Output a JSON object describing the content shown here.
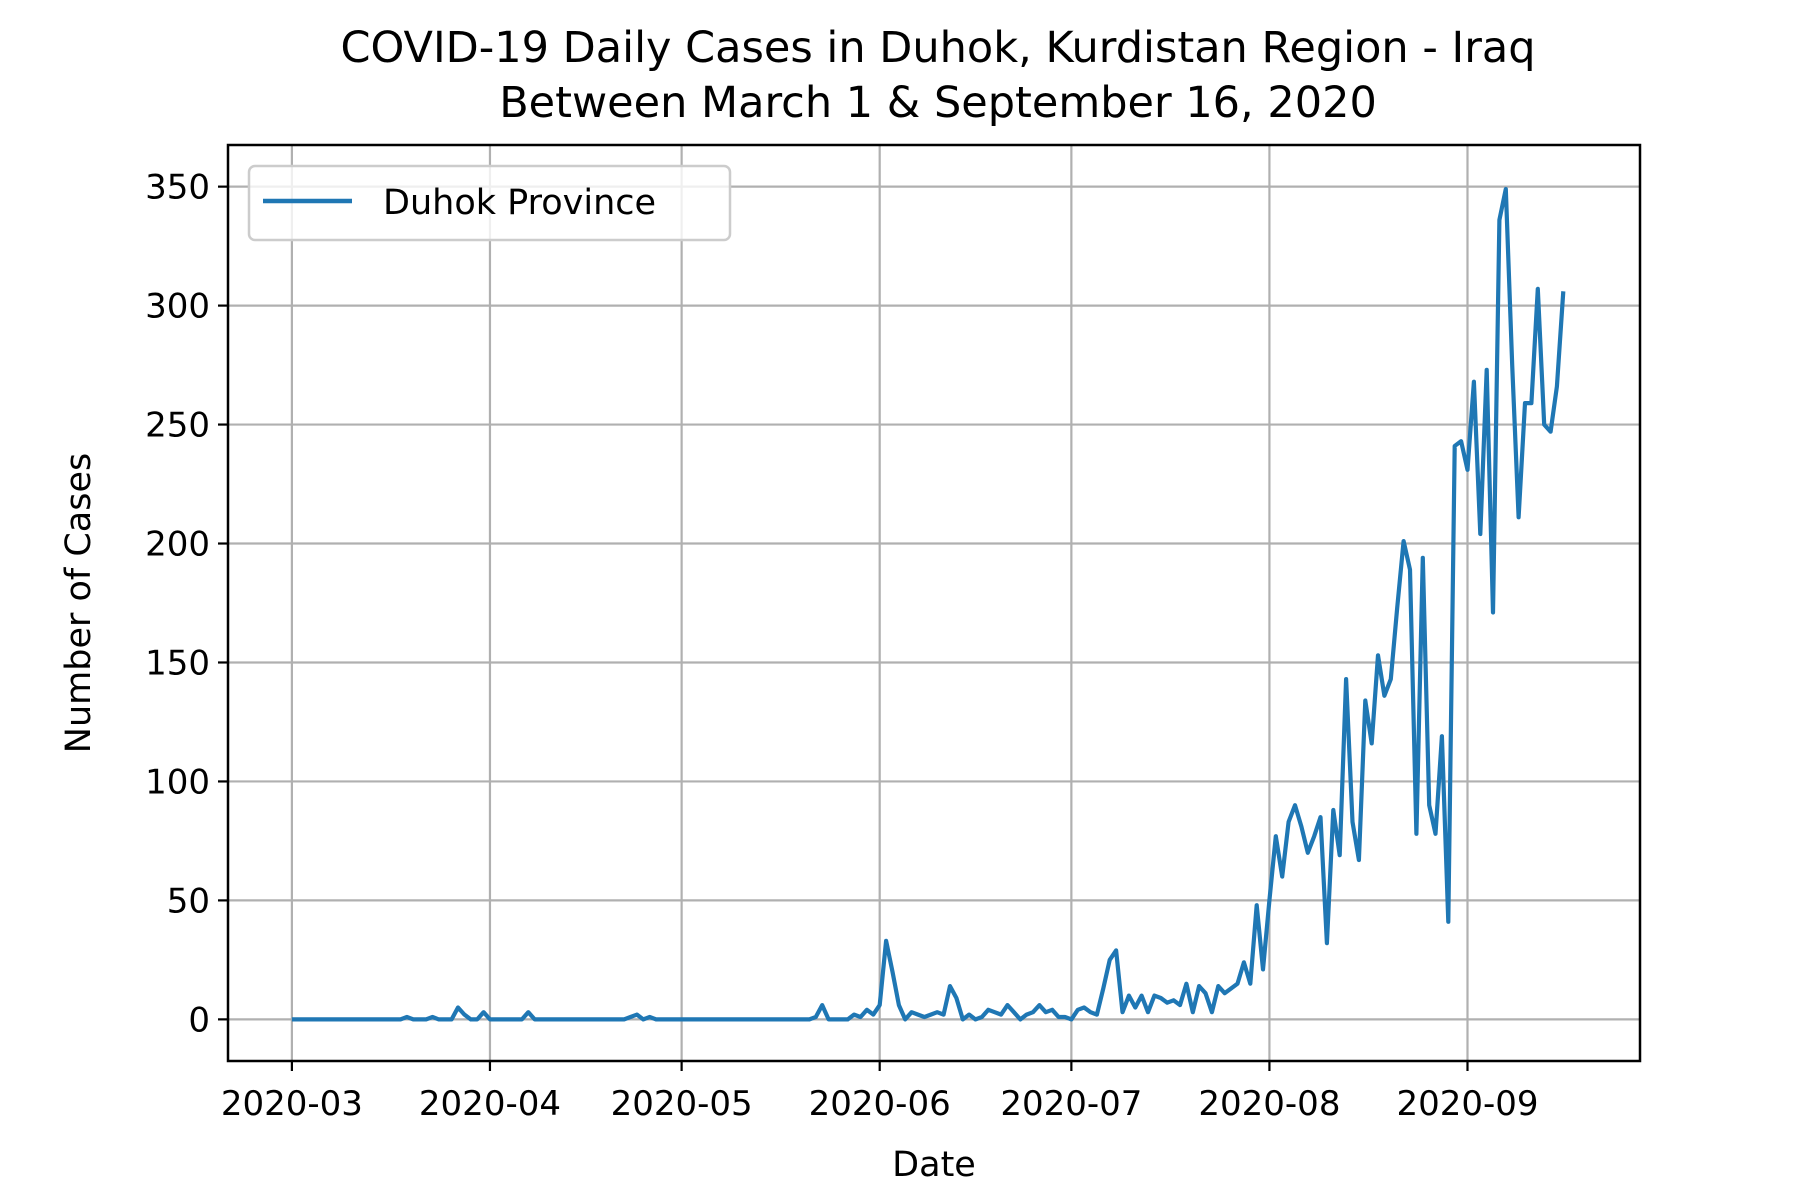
{
  "chart_data": {
    "type": "line",
    "title": "COVID-19 Daily Cases in Duhok, Kurdistan Region - Iraq",
    "subtitle": "Between March 1 & September 16, 2020",
    "xlabel": "Date",
    "ylabel": "Number of Cases",
    "x_ticks": [
      "2020-03",
      "2020-04",
      "2020-05",
      "2020-06",
      "2020-07",
      "2020-08",
      "2020-09"
    ],
    "y_ticks": [
      "0",
      "50",
      "100",
      "150",
      "200",
      "250",
      "300",
      "350"
    ],
    "xlim": [
      "2020-02-20",
      "2020-09-28"
    ],
    "ylim": [
      -17.5,
      367.5
    ],
    "grid": true,
    "legend_position": "top-left",
    "series": [
      {
        "name": "Duhok Province",
        "color": "#1f77b4",
        "points": [
          [
            "2020-03-01",
            0
          ],
          [
            "2020-03-05",
            0
          ],
          [
            "2020-03-10",
            0
          ],
          [
            "2020-03-15",
            0
          ],
          [
            "2020-03-18",
            0
          ],
          [
            "2020-03-19",
            1
          ],
          [
            "2020-03-20",
            0
          ],
          [
            "2020-03-22",
            0
          ],
          [
            "2020-03-23",
            1
          ],
          [
            "2020-03-24",
            0
          ],
          [
            "2020-03-26",
            0
          ],
          [
            "2020-03-27",
            5
          ],
          [
            "2020-03-28",
            2
          ],
          [
            "2020-03-29",
            0
          ],
          [
            "2020-03-30",
            0
          ],
          [
            "2020-03-31",
            3
          ],
          [
            "2020-04-01",
            0
          ],
          [
            "2020-04-03",
            0
          ],
          [
            "2020-04-05",
            0
          ],
          [
            "2020-04-06",
            0
          ],
          [
            "2020-04-07",
            3
          ],
          [
            "2020-04-08",
            0
          ],
          [
            "2020-04-10",
            0
          ],
          [
            "2020-04-15",
            0
          ],
          [
            "2020-04-20",
            0
          ],
          [
            "2020-04-22",
            0
          ],
          [
            "2020-04-23",
            1
          ],
          [
            "2020-04-24",
            2
          ],
          [
            "2020-04-25",
            0
          ],
          [
            "2020-04-26",
            1
          ],
          [
            "2020-04-27",
            0
          ],
          [
            "2020-05-01",
            0
          ],
          [
            "2020-05-10",
            0
          ],
          [
            "2020-05-20",
            0
          ],
          [
            "2020-05-21",
            0
          ],
          [
            "2020-05-22",
            1
          ],
          [
            "2020-05-23",
            6
          ],
          [
            "2020-05-24",
            0
          ],
          [
            "2020-05-25",
            0
          ],
          [
            "2020-05-27",
            0
          ],
          [
            "2020-05-28",
            2
          ],
          [
            "2020-05-29",
            1
          ],
          [
            "2020-05-30",
            4
          ],
          [
            "2020-05-31",
            2
          ],
          [
            "2020-06-01",
            6
          ],
          [
            "2020-06-02",
            33
          ],
          [
            "2020-06-03",
            20
          ],
          [
            "2020-06-04",
            6
          ],
          [
            "2020-06-05",
            0
          ],
          [
            "2020-06-06",
            3
          ],
          [
            "2020-06-07",
            2
          ],
          [
            "2020-06-08",
            1
          ],
          [
            "2020-06-09",
            2
          ],
          [
            "2020-06-10",
            3
          ],
          [
            "2020-06-11",
            2
          ],
          [
            "2020-06-12",
            14
          ],
          [
            "2020-06-13",
            9
          ],
          [
            "2020-06-14",
            0
          ],
          [
            "2020-06-15",
            2
          ],
          [
            "2020-06-16",
            0
          ],
          [
            "2020-06-17",
            1
          ],
          [
            "2020-06-18",
            4
          ],
          [
            "2020-06-19",
            3
          ],
          [
            "2020-06-20",
            2
          ],
          [
            "2020-06-21",
            6
          ],
          [
            "2020-06-22",
            3
          ],
          [
            "2020-06-23",
            0
          ],
          [
            "2020-06-24",
            2
          ],
          [
            "2020-06-25",
            3
          ],
          [
            "2020-06-26",
            6
          ],
          [
            "2020-06-27",
            3
          ],
          [
            "2020-06-28",
            4
          ],
          [
            "2020-06-29",
            1
          ],
          [
            "2020-06-30",
            1
          ],
          [
            "2020-07-01",
            0
          ],
          [
            "2020-07-02",
            4
          ],
          [
            "2020-07-03",
            5
          ],
          [
            "2020-07-04",
            3
          ],
          [
            "2020-07-05",
            2
          ],
          [
            "2020-07-06",
            13
          ],
          [
            "2020-07-07",
            25
          ],
          [
            "2020-07-08",
            29
          ],
          [
            "2020-07-09",
            3
          ],
          [
            "2020-07-10",
            10
          ],
          [
            "2020-07-11",
            5
          ],
          [
            "2020-07-12",
            10
          ],
          [
            "2020-07-13",
            3
          ],
          [
            "2020-07-14",
            10
          ],
          [
            "2020-07-15",
            9
          ],
          [
            "2020-07-16",
            7
          ],
          [
            "2020-07-17",
            8
          ],
          [
            "2020-07-18",
            6
          ],
          [
            "2020-07-19",
            15
          ],
          [
            "2020-07-20",
            3
          ],
          [
            "2020-07-21",
            14
          ],
          [
            "2020-07-22",
            11
          ],
          [
            "2020-07-23",
            3
          ],
          [
            "2020-07-24",
            14
          ],
          [
            "2020-07-25",
            11
          ],
          [
            "2020-07-26",
            13
          ],
          [
            "2020-07-27",
            15
          ],
          [
            "2020-07-28",
            24
          ],
          [
            "2020-07-29",
            15
          ],
          [
            "2020-07-30",
            48
          ],
          [
            "2020-07-31",
            21
          ],
          [
            "2020-08-01",
            50
          ],
          [
            "2020-08-02",
            77
          ],
          [
            "2020-08-03",
            60
          ],
          [
            "2020-08-04",
            83
          ],
          [
            "2020-08-05",
            90
          ],
          [
            "2020-08-06",
            81
          ],
          [
            "2020-08-07",
            70
          ],
          [
            "2020-08-08",
            77
          ],
          [
            "2020-08-09",
            85
          ],
          [
            "2020-08-10",
            32
          ],
          [
            "2020-08-11",
            88
          ],
          [
            "2020-08-12",
            69
          ],
          [
            "2020-08-13",
            143
          ],
          [
            "2020-08-14",
            83
          ],
          [
            "2020-08-15",
            67
          ],
          [
            "2020-08-16",
            134
          ],
          [
            "2020-08-17",
            116
          ],
          [
            "2020-08-18",
            153
          ],
          [
            "2020-08-19",
            136
          ],
          [
            "2020-08-20",
            143
          ],
          [
            "2020-08-21",
            173
          ],
          [
            "2020-08-22",
            201
          ],
          [
            "2020-08-23",
            189
          ],
          [
            "2020-08-24",
            78
          ],
          [
            "2020-08-25",
            194
          ],
          [
            "2020-08-26",
            90
          ],
          [
            "2020-08-27",
            78
          ],
          [
            "2020-08-28",
            119
          ],
          [
            "2020-08-29",
            41
          ],
          [
            "2020-08-30",
            241
          ],
          [
            "2020-08-31",
            243
          ],
          [
            "2020-09-01",
            231
          ],
          [
            "2020-09-02",
            268
          ],
          [
            "2020-09-03",
            204
          ],
          [
            "2020-09-04",
            273
          ],
          [
            "2020-09-05",
            171
          ],
          [
            "2020-09-06",
            336
          ],
          [
            "2020-09-07",
            349
          ],
          [
            "2020-09-08",
            275
          ],
          [
            "2020-09-09",
            211
          ],
          [
            "2020-09-10",
            259
          ],
          [
            "2020-09-11",
            259
          ],
          [
            "2020-09-12",
            307
          ],
          [
            "2020-09-13",
            250
          ],
          [
            "2020-09-14",
            247
          ],
          [
            "2020-09-15",
            266
          ],
          [
            "2020-09-16",
            306
          ]
        ]
      }
    ]
  }
}
